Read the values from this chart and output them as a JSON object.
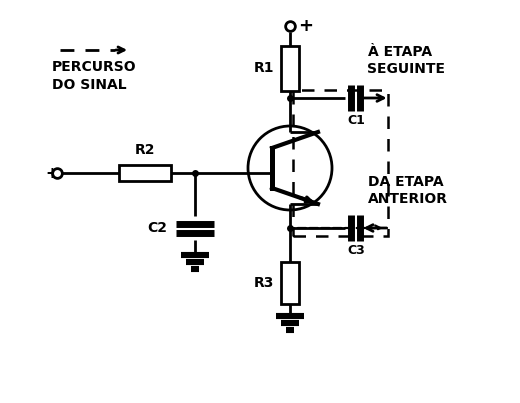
{
  "bg_color": "#ffffff",
  "line_color": "#000000",
  "text_percurso": "PERCURSO\nDO SINAL",
  "text_r1": "R1",
  "text_r2": "R2",
  "text_r3": "R3",
  "text_c1": "C1",
  "text_c2": "C2",
  "text_c3": "C3",
  "text_etapa_seg": "À ETAPA\nSEGUINTE",
  "text_etapa_ant": "DA ETAPA\nANTERIOR"
}
